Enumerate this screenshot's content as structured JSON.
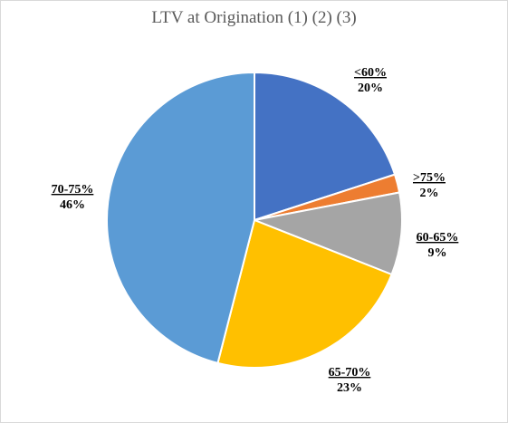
{
  "chart_data": {
    "type": "pie",
    "title": "LTV at Origination (1) (2) (3)",
    "slices": [
      {
        "label": "<60%",
        "value": 20,
        "value_label": "20%",
        "color": "#4472c4"
      },
      {
        "label": ">75%",
        "value": 2,
        "value_label": "2%",
        "color": "#ed7d31"
      },
      {
        "label": "60-65%",
        "value": 9,
        "value_label": "9%",
        "color": "#a5a5a5"
      },
      {
        "label": "65-70%",
        "value": 23,
        "value_label": "23%",
        "color": "#ffc000"
      },
      {
        "label": "70-75%",
        "value": 46,
        "value_label": "46%",
        "color": "#5b9bd5"
      }
    ],
    "legend": false,
    "label_style": "outside-end, bold, underlined category name"
  }
}
